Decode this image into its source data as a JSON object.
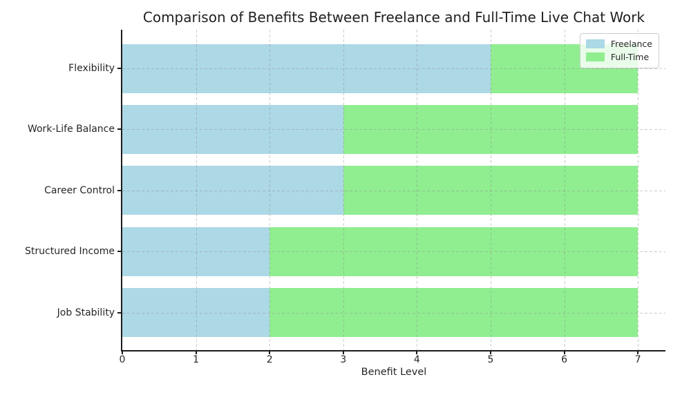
{
  "chart_data": {
    "type": "bar",
    "orientation": "horizontal",
    "stacked": true,
    "title": "Comparison of Benefits Between Freelance and Full-Time Live Chat Work",
    "xlabel": "Benefit Level",
    "ylabel": "",
    "categories": [
      "Flexibility",
      "Work-Life Balance",
      "Career Control",
      "Structured Income",
      "Job Stability"
    ],
    "series": [
      {
        "name": "Freelance",
        "color": "#ADD8E6",
        "values": [
          5,
          3,
          3,
          2,
          2
        ]
      },
      {
        "name": "Full-Time",
        "color": "#90EE90",
        "values": [
          2,
          4,
          4,
          5,
          5
        ]
      }
    ],
    "totals": [
      7,
      7,
      7,
      7,
      7
    ],
    "xticks": [
      0,
      1,
      2,
      3,
      4,
      5,
      6,
      7
    ],
    "xlim": [
      0,
      7.35
    ],
    "grid": true,
    "grid_style": "dashed",
    "legend_position": "upper right",
    "colors": {
      "freelance": "#ADD8E6",
      "fulltime": "#90EE90",
      "grid": "#c9c9c9",
      "spine": "#1a1a1a",
      "text": "#262626",
      "background": "#ffffff"
    }
  }
}
